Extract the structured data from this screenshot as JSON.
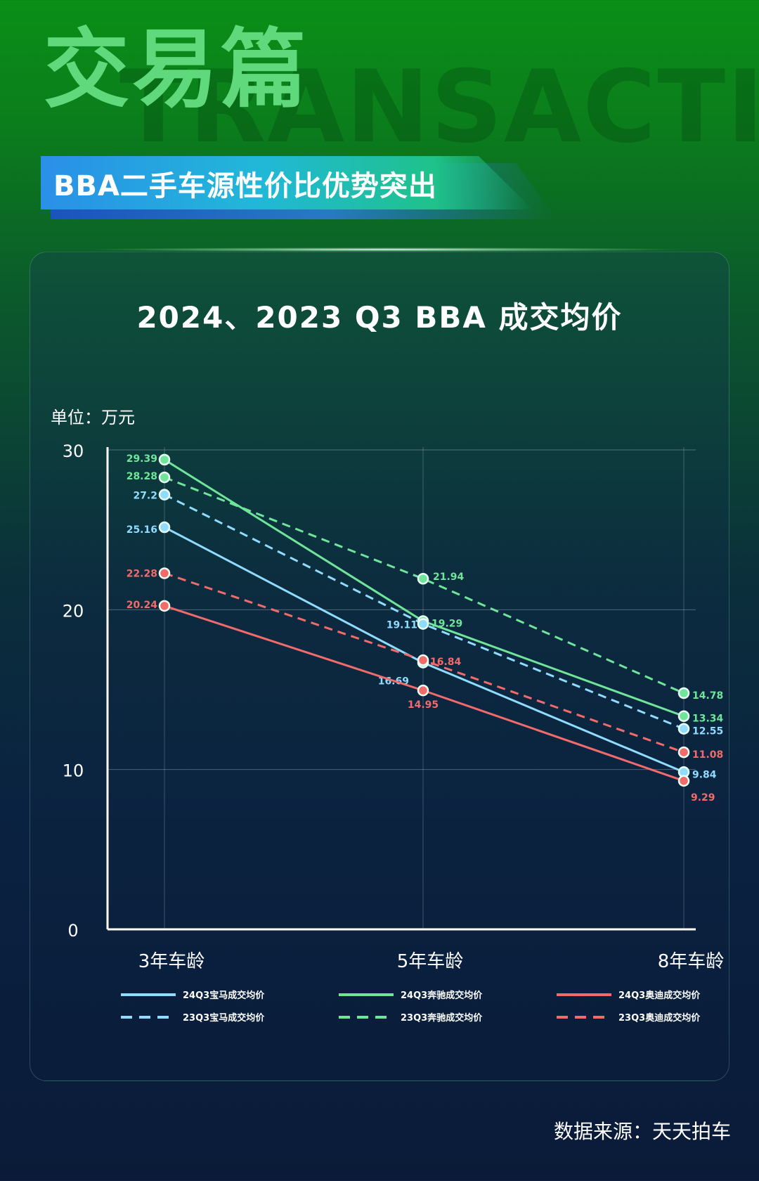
{
  "header": {
    "title": "交易篇",
    "background_word": "TRANSACTION S",
    "banner": "BBA二手车源性价比优势突出"
  },
  "chart_data": {
    "type": "line",
    "title": "2024、2023 Q3 BBA 成交均价",
    "unit_label": "单位：万元",
    "categories": [
      "3年车龄",
      "5年车龄",
      "8年车龄"
    ],
    "ylim": [
      0,
      30
    ],
    "yticks": [
      0,
      10,
      20,
      30
    ],
    "grid": true,
    "legend_position": "bottom",
    "series": [
      {
        "name": "24Q3宝马成交均价",
        "values": [
          25.16,
          16.69,
          9.84
        ],
        "color": "#8fdcff",
        "dashed": false
      },
      {
        "name": "24Q3奔驰成交均价",
        "values": [
          29.39,
          19.29,
          13.34
        ],
        "color": "#6fe59a",
        "dashed": false
      },
      {
        "name": "24Q3奥迪成交均价",
        "values": [
          20.24,
          14.95,
          9.29
        ],
        "color": "#f26b6b",
        "dashed": false
      },
      {
        "name": "23Q3宝马成交均价",
        "values": [
          27.2,
          19.11,
          12.55
        ],
        "color": "#8fdcff",
        "dashed": true
      },
      {
        "name": "23Q3奔驰成交均价",
        "values": [
          28.28,
          21.94,
          14.78
        ],
        "color": "#6fe59a",
        "dashed": true
      },
      {
        "name": "23Q3奥迪成交均价",
        "values": [
          22.28,
          16.84,
          11.08
        ],
        "color": "#f26b6b",
        "dashed": true
      }
    ]
  },
  "footer": {
    "source": "数据来源：天天拍车"
  }
}
